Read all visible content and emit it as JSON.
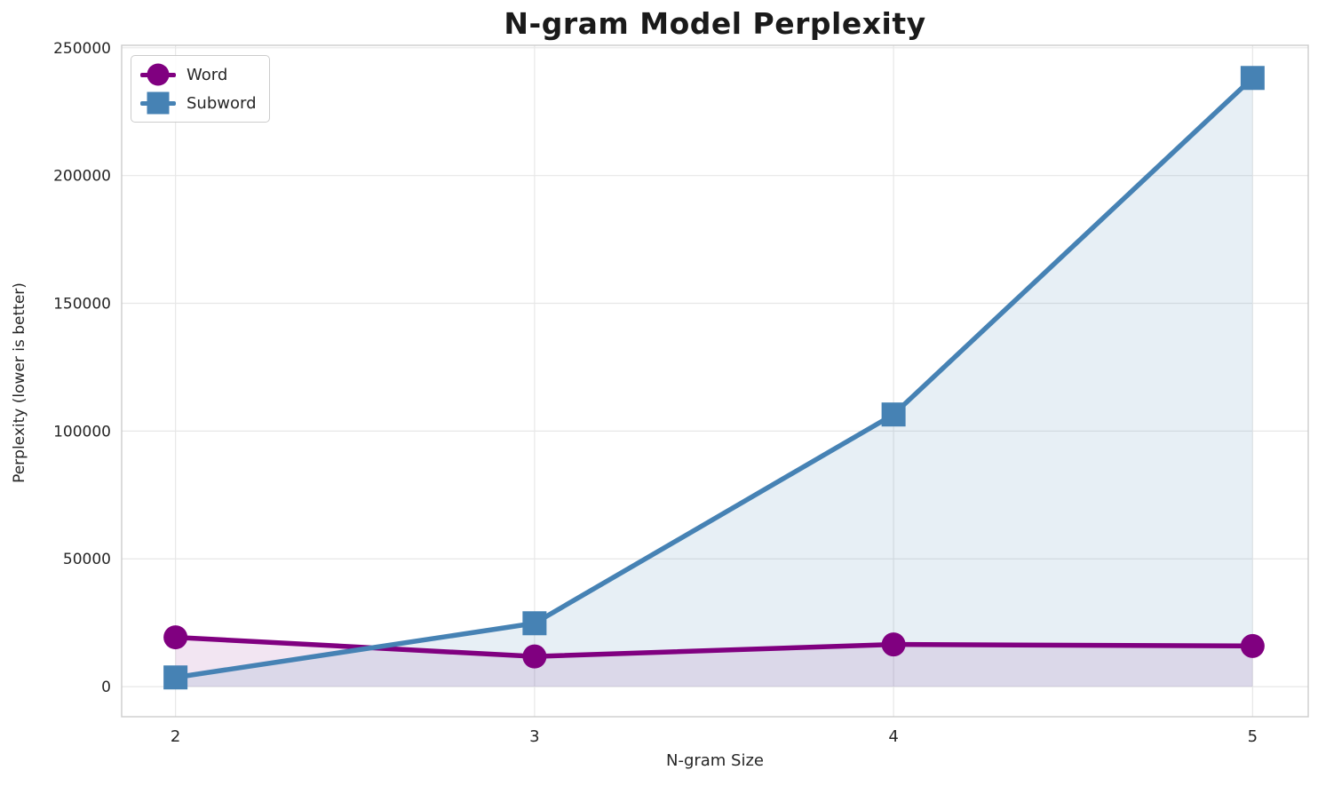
{
  "chart_data": {
    "type": "line",
    "title": "N-gram Model Perplexity",
    "xlabel": "N-gram Size",
    "ylabel": "Perplexity (lower is better)",
    "x": [
      2,
      3,
      4,
      5
    ],
    "series": [
      {
        "name": "Word",
        "color": "#800080",
        "marker": "circle",
        "fill_alpha": 0.1,
        "values": [
          19300,
          11800,
          16500,
          15900
        ]
      },
      {
        "name": "Subword",
        "color": "#4682B4",
        "marker": "square",
        "fill_alpha": 0.13,
        "values": [
          3600,
          24800,
          106500,
          238200
        ]
      }
    ],
    "xticks": [
      2,
      3,
      4,
      5
    ],
    "yticks": [
      0,
      50000,
      100000,
      150000,
      200000,
      250000
    ],
    "xlim": [
      1.85,
      5.155
    ],
    "ylim": [
      -11780,
      250980
    ],
    "grid": true,
    "fill_to_zero": true,
    "legend_position": "upper left"
  },
  "style": {
    "grid_color": "#e7e7e7",
    "spine_color": "#cccccc",
    "tick_label_color": "#262626",
    "title_color": "#1a1a1a",
    "background": "#ffffff",
    "line_width": 5.5,
    "marker_size": 27
  }
}
